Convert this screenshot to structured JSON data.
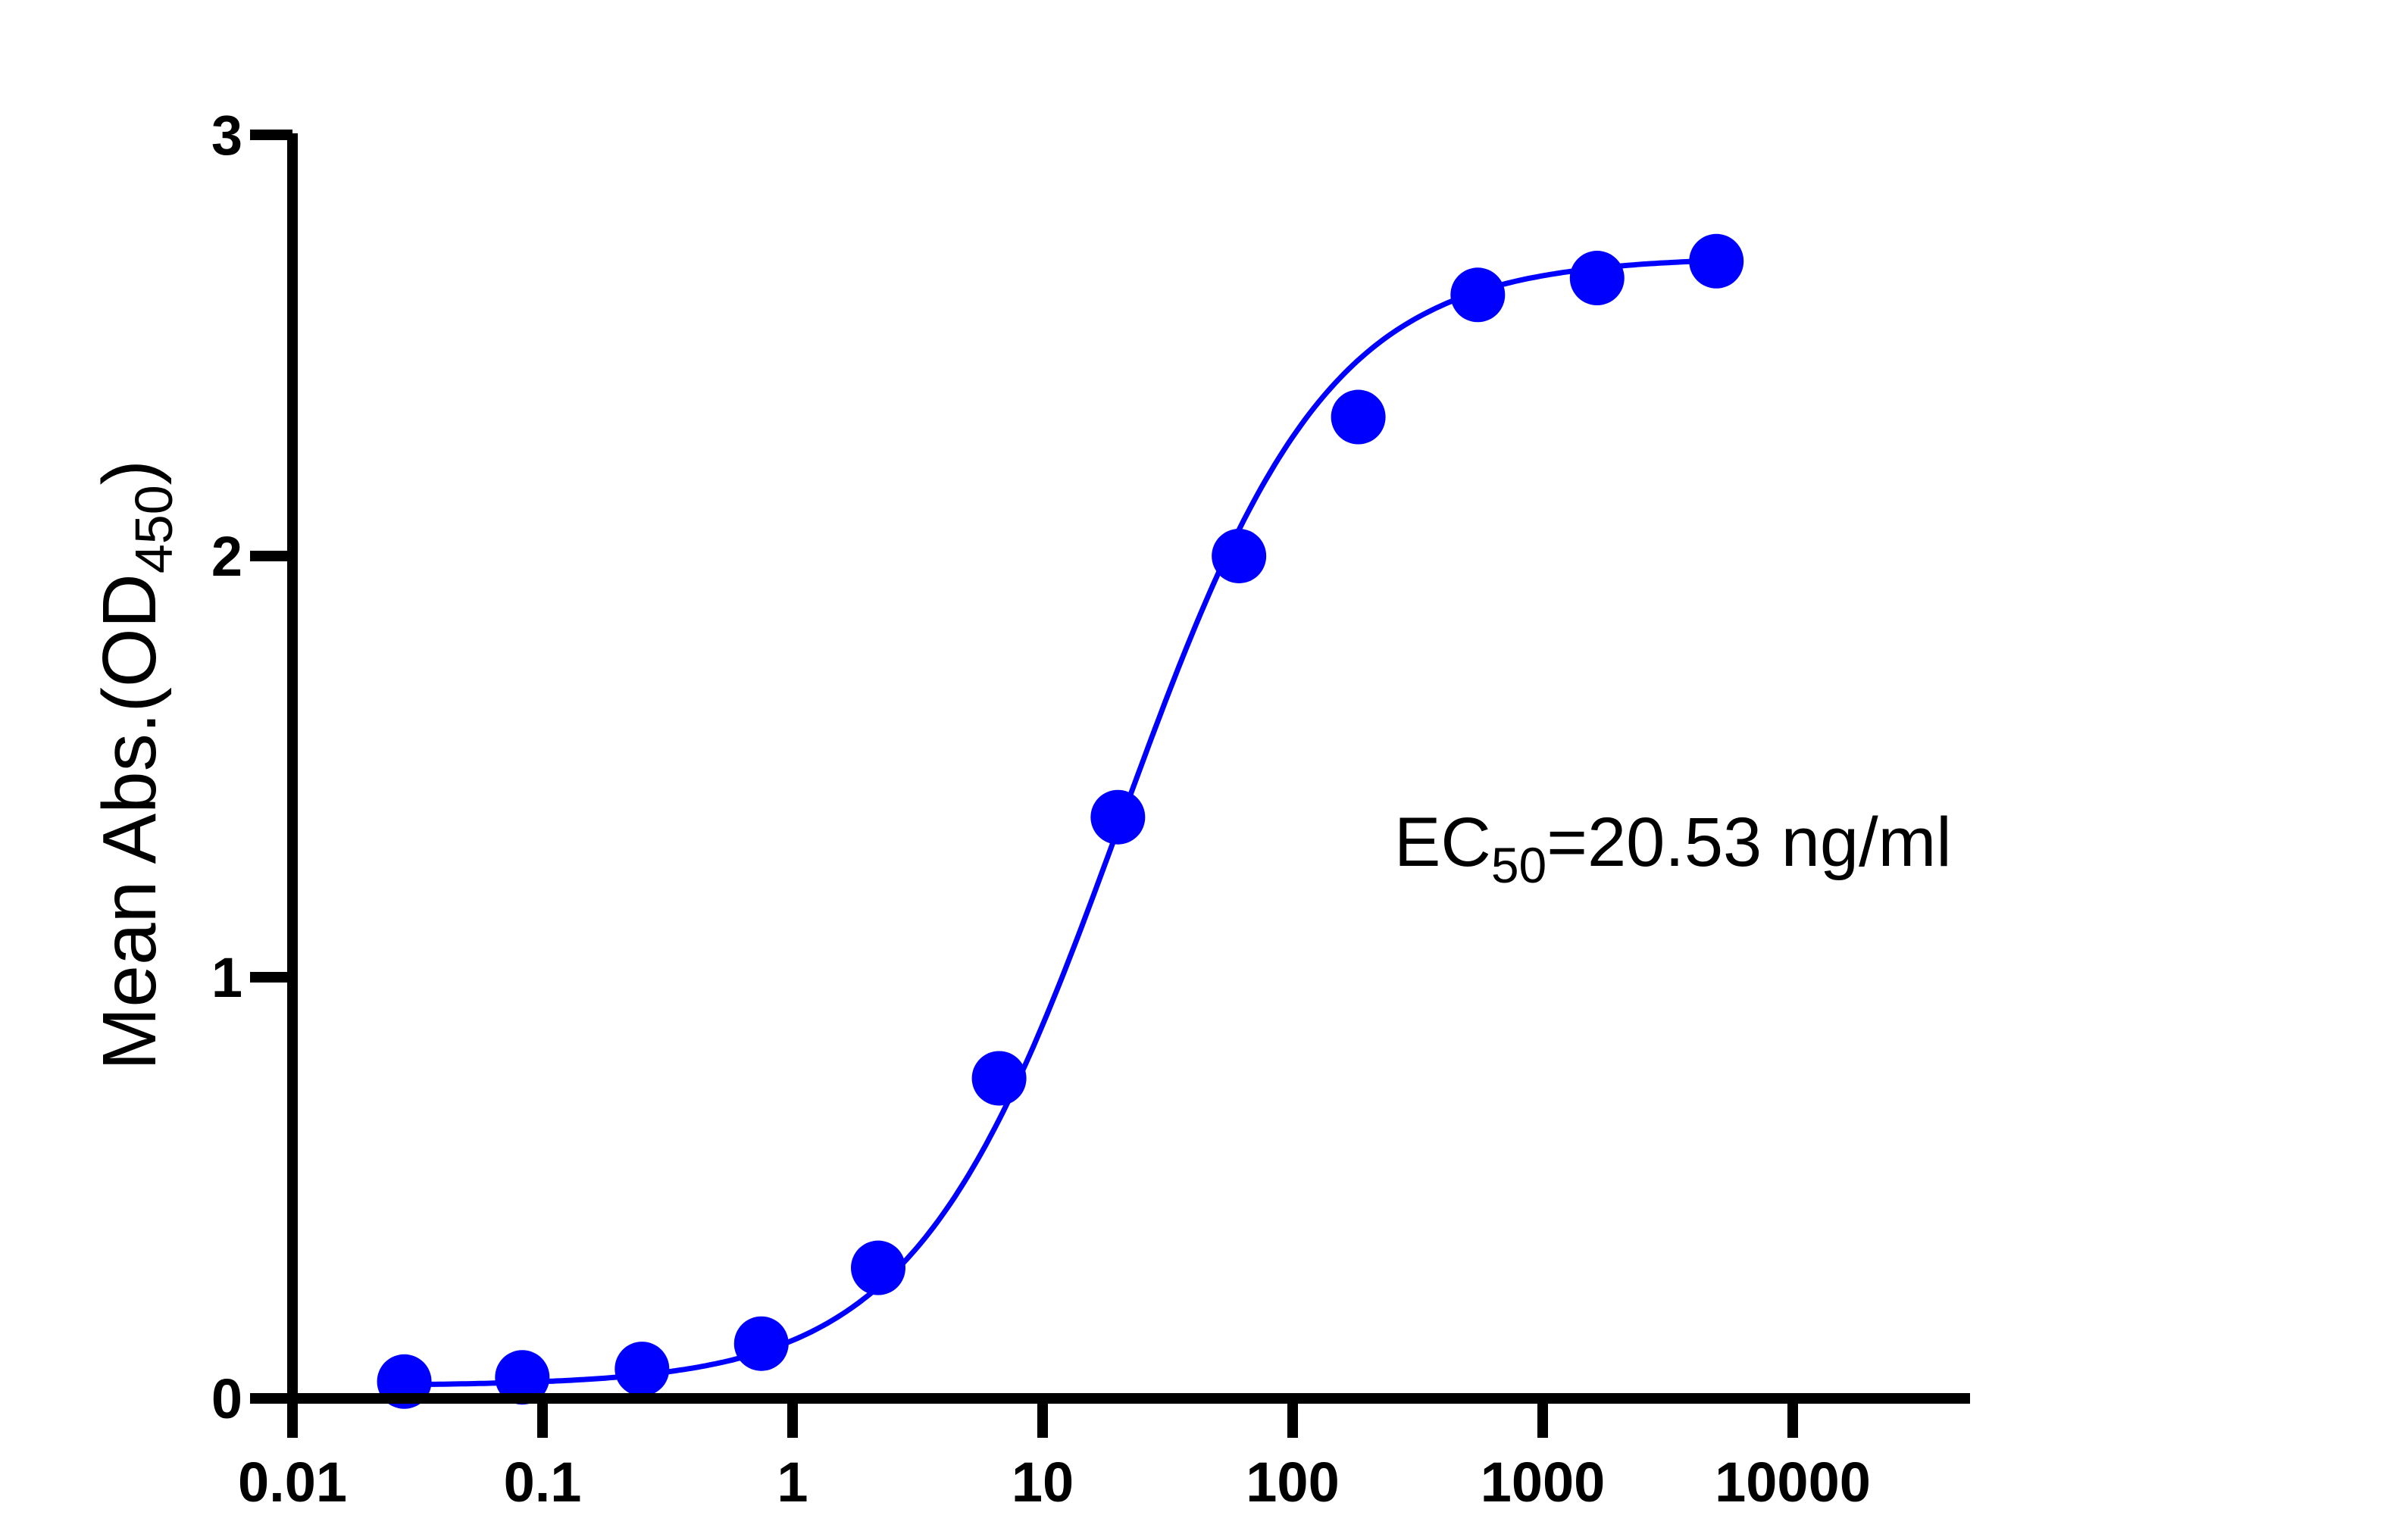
{
  "chart_data": {
    "type": "scatter",
    "title": "",
    "xlabel": "",
    "ylabel": "Mean Abs.(OD",
    "ylabel_sub": "450",
    "ylabel_suffix": ")",
    "x_scale": "log",
    "xlim": [
      0.01,
      100000
    ],
    "ylim": [
      0,
      3
    ],
    "x_ticks": [
      0.01,
      0.1,
      1,
      10,
      100,
      1000,
      10000
    ],
    "x_tick_labels": [
      "0.01",
      "0.1",
      "1",
      "10",
      "100",
      "1000",
      "10000"
    ],
    "y_ticks": [
      0,
      1,
      2,
      3
    ],
    "y_tick_labels": [
      "0",
      "1",
      "2",
      "3"
    ],
    "grid": false,
    "legend": "none",
    "series": [
      {
        "color": "#0000ff",
        "x": [
          0.028,
          0.083,
          0.25,
          0.75,
          2.2,
          6.7,
          20,
          61,
          183,
          550,
          1650,
          4950
        ],
        "y": [
          0.04,
          0.05,
          0.07,
          0.13,
          0.31,
          0.76,
          1.38,
          2.0,
          2.33,
          2.62,
          2.66,
          2.7
        ]
      }
    ],
    "fit_curve": {
      "model": "4PL",
      "bottom": 0.03,
      "top": 2.71,
      "ec50": 20.53,
      "hill": 1.05,
      "color": "#0000ff"
    },
    "annotation": {
      "prefix": "EC",
      "sub": "50",
      "suffix": "=20.53 ng/ml"
    }
  }
}
